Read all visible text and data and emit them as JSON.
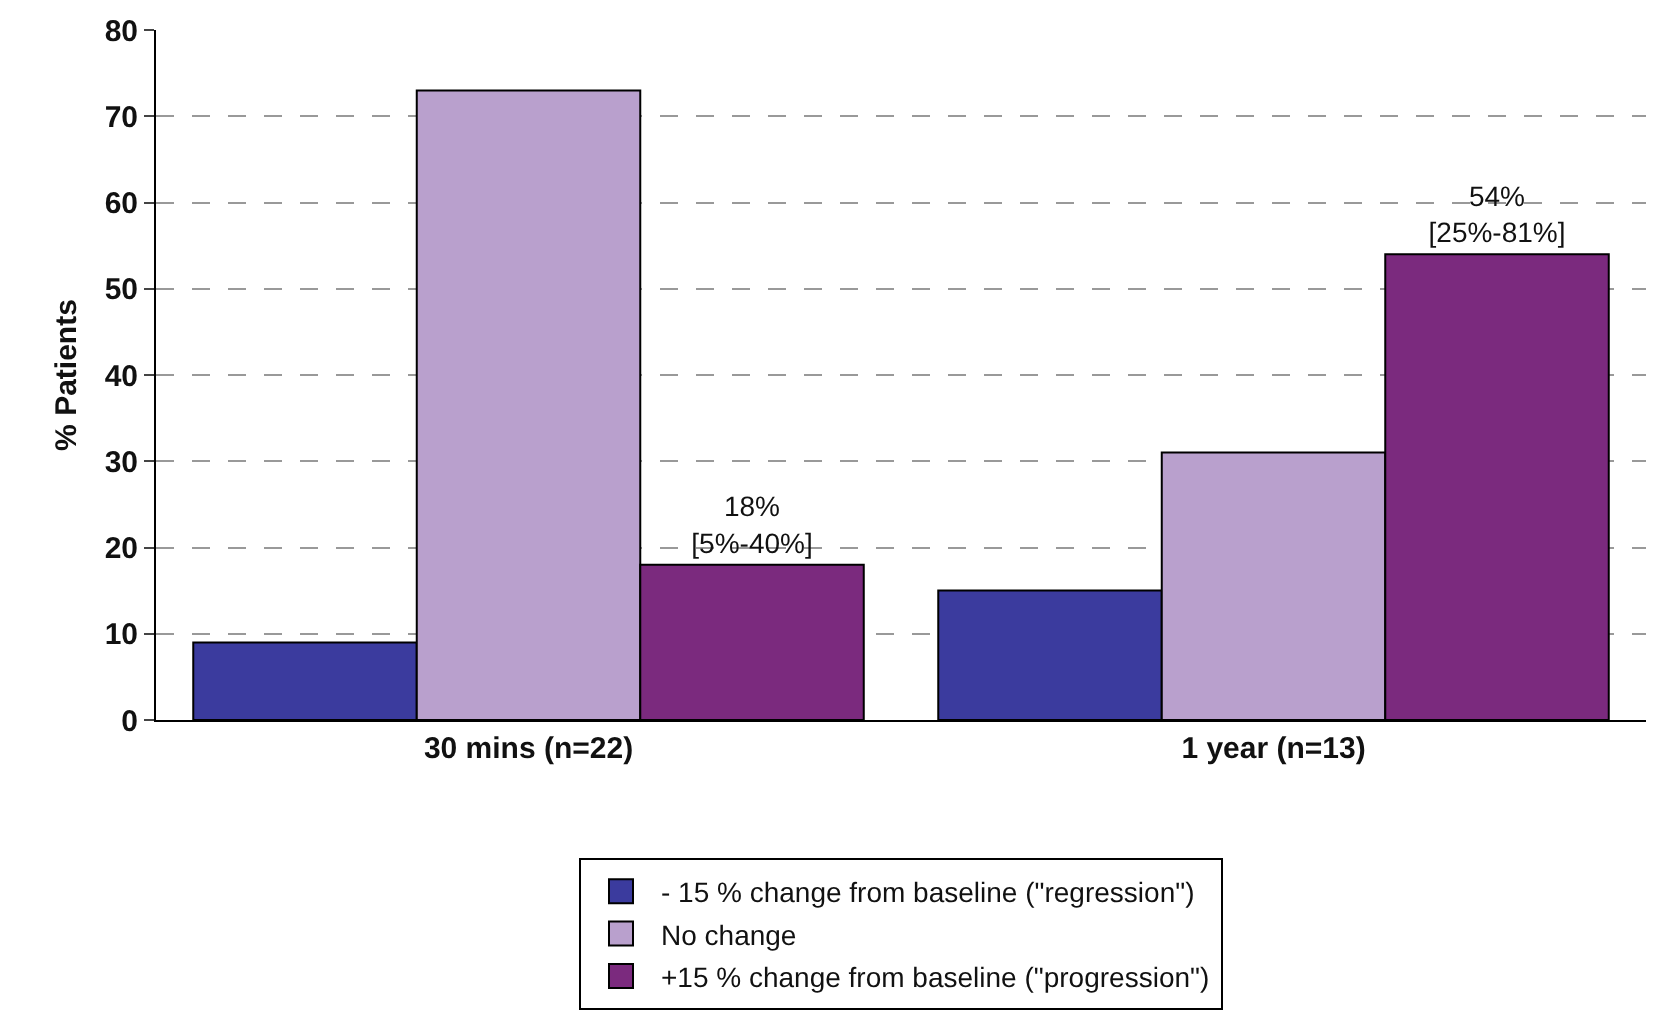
{
  "chart_data": {
    "type": "bar",
    "ylabel": "% Patients",
    "categories": [
      "30 mins (n=22)",
      "1 year (n=13)"
    ],
    "series": [
      {
        "name": "- 15 % change from baseline (\"regression\")",
        "color": "#3b3b9e",
        "values": [
          9,
          15
        ]
      },
      {
        "name": "No change",
        "color": "#b9a0cd",
        "values": [
          73,
          31
        ]
      },
      {
        "name": "+15 % change from baseline (\"progression\")",
        "color": "#7b2a7e",
        "values": [
          18,
          54
        ],
        "value_labels": [
          "18%\n[5%-40%]",
          "54%\n[25%-81%]"
        ]
      }
    ],
    "ylim": [
      0,
      80
    ],
    "yticks": [
      0,
      10,
      20,
      30,
      40,
      50,
      60,
      70,
      80
    ],
    "grid": "y",
    "legend": "bottom"
  }
}
